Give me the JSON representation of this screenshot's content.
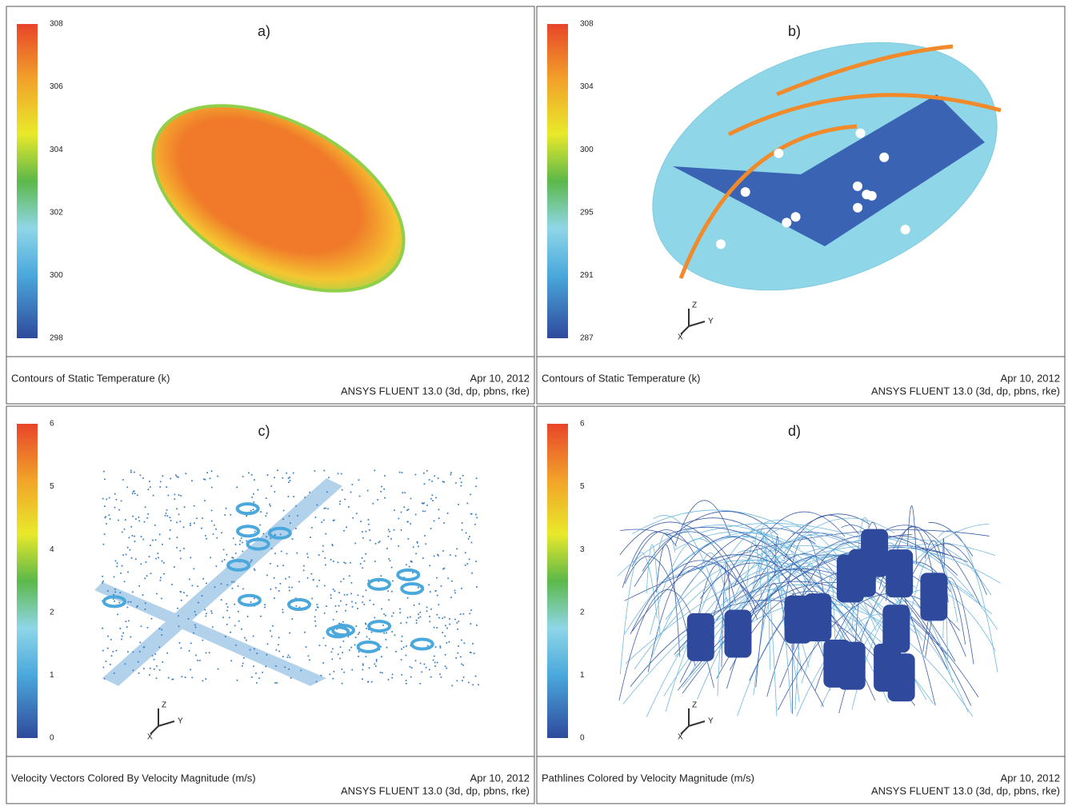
{
  "panels": [
    {
      "label": "a)",
      "colorbar_ticks": [
        308,
        306,
        304,
        302,
        300,
        298
      ],
      "caption": "Contours of Static Temperature (k)",
      "date": "Apr 10, 2012",
      "software": "ANSYS FLUENT 13.0 (3d, dp, pbns, rke)"
    },
    {
      "label": "b)",
      "colorbar_ticks": [
        308,
        304,
        300,
        295,
        291,
        287
      ],
      "triad": [
        "Z",
        "Y",
        "X"
      ],
      "caption": "Contours of Static Temperature (k)",
      "date": "Apr 10, 2012",
      "software": "ANSYS FLUENT 13.0 (3d, dp, pbns, rke)"
    },
    {
      "label": "c)",
      "colorbar_ticks": [
        6,
        5,
        4,
        2,
        1,
        0
      ],
      "triad": [
        "Z",
        "Y",
        "X"
      ],
      "caption": "Velocity Vectors Colored By Velocity Magnitude (m/s)",
      "date": "Apr 10, 2012",
      "software": "ANSYS FLUENT 13.0 (3d, dp, pbns, rke)"
    },
    {
      "label": "d)",
      "colorbar_ticks": [
        6,
        5,
        3,
        2,
        1,
        0
      ],
      "triad": [
        "Z",
        "Y",
        "X"
      ],
      "caption": "Pathlines Colored by Velocity Magnitude (m/s)",
      "date": "Apr 10, 2012",
      "software": "ANSYS FLUENT 13.0 (3d, dp, pbns, rke)"
    }
  ]
}
